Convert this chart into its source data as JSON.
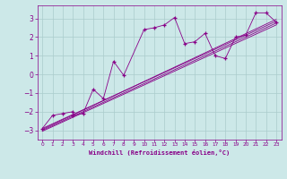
{
  "title": "",
  "xlabel": "Windchill (Refroidissement éolien,°C)",
  "bg_color": "#cce8e8",
  "line_color": "#880088",
  "grid_color": "#aacccc",
  "xlim": [
    -0.5,
    23.5
  ],
  "ylim": [
    -3.5,
    3.7
  ],
  "yticks": [
    -3,
    -2,
    -1,
    0,
    1,
    2,
    3
  ],
  "xticks": [
    0,
    1,
    2,
    3,
    4,
    5,
    6,
    7,
    8,
    9,
    10,
    11,
    12,
    13,
    14,
    15,
    16,
    17,
    18,
    19,
    20,
    21,
    22,
    23
  ],
  "scatter_x": [
    0,
    1,
    2,
    3,
    3,
    4,
    5,
    6,
    7,
    8,
    10,
    11,
    12,
    13,
    14,
    15,
    16,
    17,
    18,
    19,
    20,
    21,
    22,
    23
  ],
  "scatter_y": [
    -2.9,
    -2.2,
    -2.1,
    -2.0,
    -2.2,
    -2.1,
    -0.8,
    -1.3,
    0.7,
    -0.05,
    2.4,
    2.5,
    2.65,
    3.05,
    1.65,
    1.75,
    2.2,
    1.0,
    0.85,
    2.0,
    2.1,
    3.3,
    3.3,
    2.8
  ],
  "trend_lines": [
    [
      -2.9,
      2.85
    ],
    [
      -2.95,
      2.95
    ],
    [
      -3.05,
      2.65
    ],
    [
      -3.0,
      2.75
    ]
  ]
}
